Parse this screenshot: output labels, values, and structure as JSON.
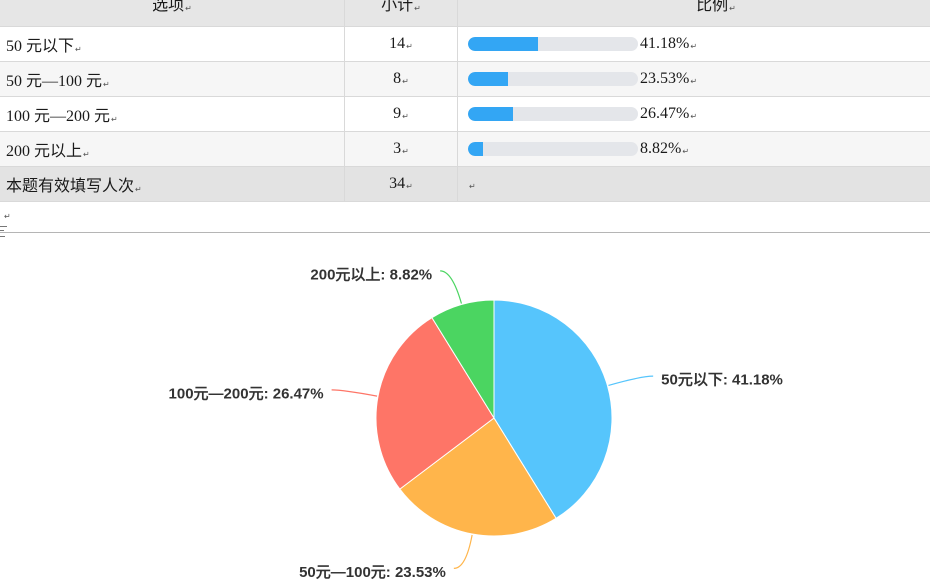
{
  "chart_data": [
    {
      "type": "table",
      "columns": [
        "选项",
        "小计",
        "比例"
      ],
      "rows": [
        {
          "option": "50 元以下",
          "count": 14,
          "percent": "41.18%"
        },
        {
          "option": "50 元—100 元",
          "count": 8,
          "percent": "23.53%"
        },
        {
          "option": "100 元—200 元",
          "count": 9,
          "percent": "26.47%"
        },
        {
          "option": "200 元以上",
          "count": 3,
          "percent": "8.82%"
        }
      ],
      "total": {
        "label": "本题有效填写人次",
        "count": 34
      },
      "bar_color": "#33a6f4",
      "bar_track_color": "#e4e6ea"
    },
    {
      "type": "pie",
      "labels": [
        "50元以下: 41.18%",
        "50元—100元: 23.53%",
        "100元—200元: 26.47%",
        "200元以上: 8.82%"
      ],
      "values": [
        41.18,
        23.53,
        26.47,
        8.82
      ],
      "colors": [
        "#56c5fc",
        "#ffb54b",
        "#fe7567",
        "#4bd561"
      ]
    }
  ]
}
